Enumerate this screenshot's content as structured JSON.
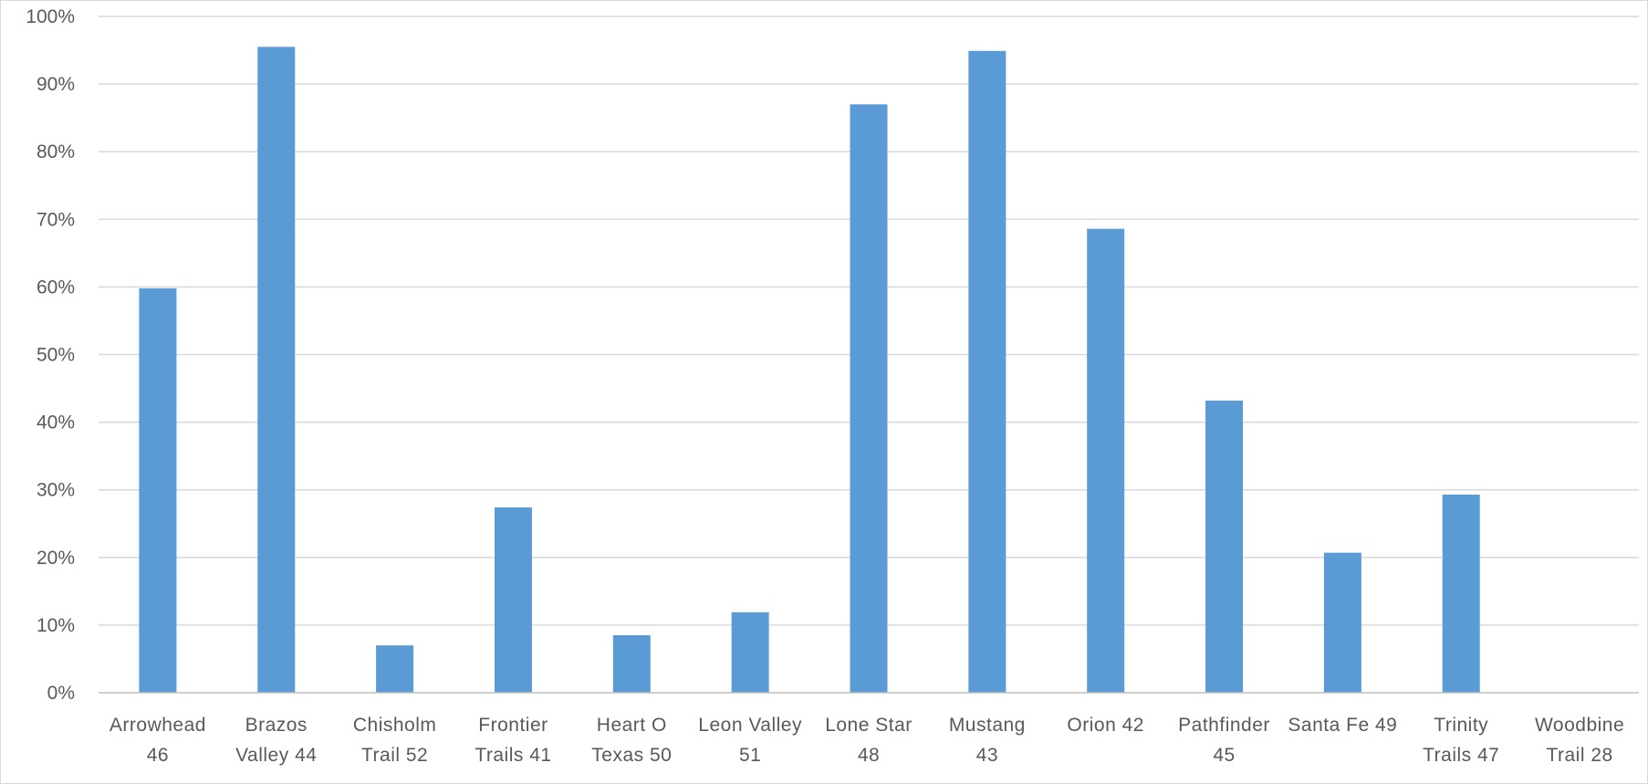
{
  "chart_data": {
    "type": "bar",
    "categories": [
      [
        "Arrowhead",
        "46"
      ],
      [
        "Brazos",
        "Valley 44"
      ],
      [
        "Chisholm",
        "Trail 52"
      ],
      [
        "Frontier",
        "Trails 41"
      ],
      [
        "Heart O",
        "Texas 50"
      ],
      [
        "Leon Valley",
        "51"
      ],
      [
        "Lone Star",
        "48"
      ],
      [
        "Mustang",
        "43"
      ],
      [
        "Orion 42",
        ""
      ],
      [
        "Pathfinder",
        "45"
      ],
      [
        "Santa Fe 49",
        ""
      ],
      [
        "Trinity",
        "Trails 47"
      ],
      [
        "Woodbine",
        "Trail 28"
      ]
    ],
    "values": [
      59.8,
      95.5,
      7.0,
      27.4,
      8.5,
      11.9,
      87.0,
      94.9,
      68.6,
      43.2,
      20.7,
      29.3,
      0
    ],
    "ylim": [
      0,
      100
    ],
    "yticks": [
      "0%",
      "10%",
      "20%",
      "30%",
      "40%",
      "50%",
      "60%",
      "70%",
      "80%",
      "90%",
      "100%"
    ],
    "grid": true,
    "colors": {
      "bar": "#5b9bd5",
      "grid": "#d9d9d9",
      "axis": "#bfbfbf",
      "text": "#595959"
    }
  }
}
